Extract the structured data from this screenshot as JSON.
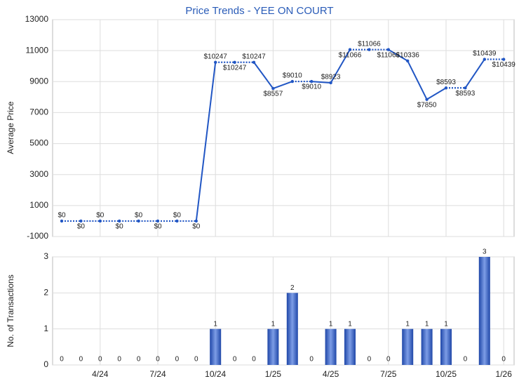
{
  "chart_data": [
    {
      "type": "line",
      "title": "Price Trends - YEE ON COURT",
      "y_label": "Average Price",
      "categories": [
        null,
        null,
        "4/24",
        null,
        null,
        "7/24",
        null,
        null,
        "10/24",
        null,
        null,
        "1/25",
        null,
        null,
        "4/25",
        null,
        null,
        "7/25",
        null,
        null,
        "10/25",
        null,
        null,
        "1/26"
      ],
      "values": [
        0,
        0,
        0,
        0,
        0,
        0,
        0,
        0,
        10247,
        10247,
        10247,
        8557,
        9010,
        9010,
        8923,
        11066,
        11066,
        11066,
        10336,
        7850,
        8593,
        8593,
        10439,
        10439
      ],
      "value_labels": [
        "$0",
        "$0",
        "$0",
        "$0",
        "$0",
        "$0",
        "$0",
        "$0",
        "$10247",
        "$10247",
        "$10247",
        "$8557",
        "$9010",
        "$9010",
        "$8923",
        "$11066",
        "$11066",
        "$11066",
        "$10336",
        "$7850",
        "$8593",
        "$8593",
        "$10439",
        "$10439"
      ],
      "color": "#2156c4",
      "ylim": [
        -1000,
        13000
      ],
      "yticks": [
        -1000,
        1000,
        3000,
        5000,
        7000,
        9000,
        11000,
        13000
      ],
      "grid": true
    },
    {
      "type": "bar",
      "y_label": "No. of Transactions",
      "values": [
        0,
        0,
        0,
        0,
        0,
        0,
        0,
        0,
        1,
        0,
        0,
        1,
        2,
        0,
        1,
        1,
        0,
        0,
        1,
        1,
        1,
        0,
        3,
        0
      ],
      "color": "#2f5fc8",
      "ylim": [
        0,
        3
      ],
      "yticks": [
        0,
        1,
        2,
        3
      ],
      "grid": true
    }
  ]
}
